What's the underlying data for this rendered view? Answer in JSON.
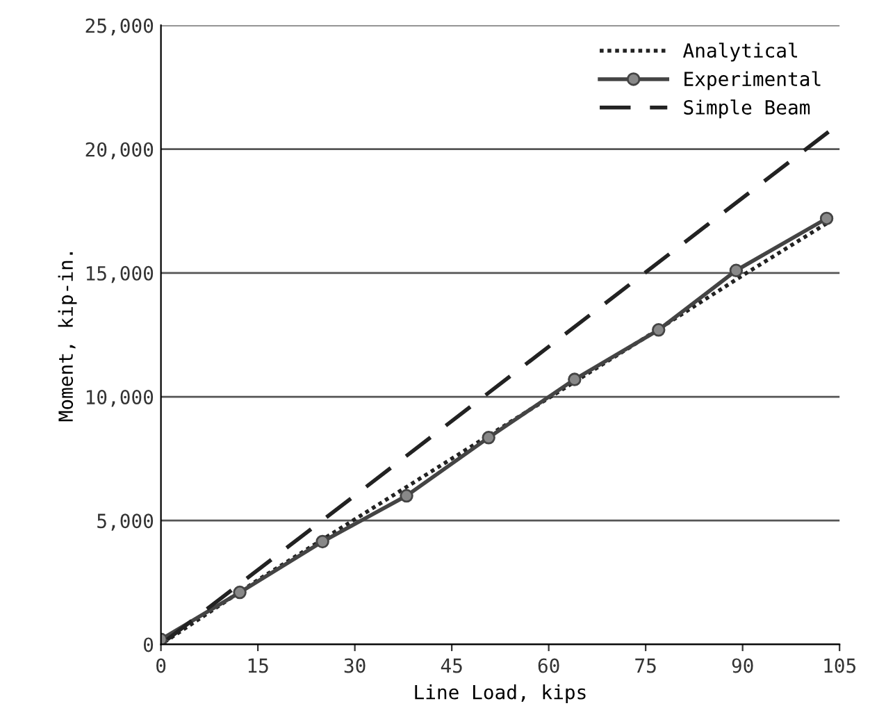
{
  "chart_data": {
    "type": "line",
    "xlabel": "Line Load, kips",
    "ylabel": "Moment, kip-in.",
    "xlim": [
      0,
      105
    ],
    "xticks": [
      0,
      15,
      30,
      45,
      60,
      75,
      90,
      105
    ],
    "ylim": [
      0,
      25000
    ],
    "yticks": [
      {
        "value": 0,
        "label": "0"
      },
      {
        "value": 5000,
        "label": "5,000"
      },
      {
        "value": 10000,
        "label": "10,000"
      },
      {
        "value": 15000,
        "label": "15,000"
      },
      {
        "value": 20000,
        "label": "20,000"
      },
      {
        "value": 25000,
        "label": "25,000"
      }
    ],
    "grid": "y",
    "legend": "top right",
    "series": [
      {
        "name": "Analytical",
        "color": "#222222",
        "line_style": "dotted",
        "marker": "none",
        "x": [
          0,
          15,
          30,
          45,
          60,
          75,
          90,
          103
        ],
        "values": [
          0,
          2600,
          5050,
          7500,
          9950,
          12400,
          14900,
          17000
        ]
      },
      {
        "name": "Experimental",
        "color": "#444444",
        "line_style": "solid",
        "marker": "circle",
        "x": [
          0,
          12.2,
          25,
          38,
          50.7,
          64,
          77,
          89,
          103
        ],
        "values": [
          200,
          2100,
          4150,
          6000,
          8350,
          10700,
          12700,
          15100,
          17200
        ]
      },
      {
        "name": "Simple Beam",
        "color": "#222222",
        "line_style": "dashed",
        "marker": "none",
        "x": [
          0,
          103.3
        ],
        "values": [
          0,
          20700
        ]
      }
    ]
  }
}
